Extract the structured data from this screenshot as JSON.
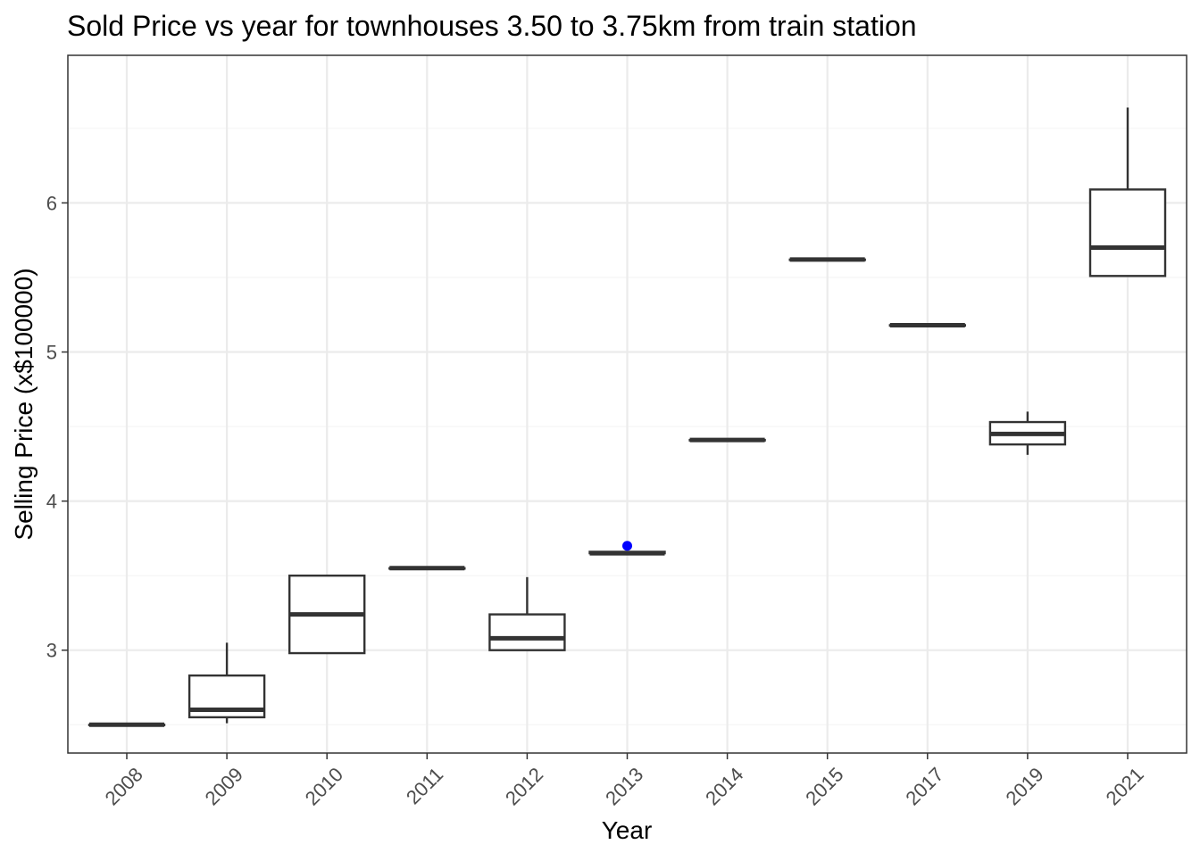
{
  "chart_data": {
    "type": "box",
    "title": "Sold Price vs year for townhouses 3.50 to 3.75km from train station",
    "xlabel": "Year",
    "ylabel": "Selling Price (x$100000)",
    "categories": [
      "2008",
      "2009",
      "2010",
      "2011",
      "2012",
      "2013",
      "2014",
      "2015",
      "2017",
      "2019",
      "2021"
    ],
    "y_ticks": [
      3,
      4,
      5,
      6
    ],
    "ylim": [
      2.31,
      6.99
    ],
    "grid": true,
    "boxes": [
      {
        "category": "2008",
        "min": 2.5,
        "q1": 2.5,
        "median": 2.5,
        "q3": 2.5,
        "max": 2.5
      },
      {
        "category": "2009",
        "min": 2.51,
        "q1": 2.55,
        "median": 2.6,
        "q3": 2.83,
        "max": 3.05
      },
      {
        "category": "2010",
        "min": 2.98,
        "q1": 2.98,
        "median": 3.24,
        "q3": 3.5,
        "max": 3.5
      },
      {
        "category": "2011",
        "min": 3.55,
        "q1": 3.55,
        "median": 3.55,
        "q3": 3.55,
        "max": 3.55
      },
      {
        "category": "2012",
        "min": 3.0,
        "q1": 3.0,
        "median": 3.08,
        "q3": 3.24,
        "max": 3.49
      },
      {
        "category": "2013",
        "min": 3.65,
        "q1": 3.65,
        "median": 3.65,
        "q3": 3.66,
        "max": 3.66
      },
      {
        "category": "2014",
        "min": 4.41,
        "q1": 4.41,
        "median": 4.41,
        "q3": 4.41,
        "max": 4.41
      },
      {
        "category": "2015",
        "min": 5.62,
        "q1": 5.62,
        "median": 5.62,
        "q3": 5.62,
        "max": 5.62
      },
      {
        "category": "2017",
        "min": 5.18,
        "q1": 5.18,
        "median": 5.18,
        "q3": 5.18,
        "max": 5.18
      },
      {
        "category": "2019",
        "min": 4.31,
        "q1": 4.38,
        "median": 4.45,
        "q3": 4.53,
        "max": 4.6
      },
      {
        "category": "2021",
        "min": 5.51,
        "q1": 5.51,
        "median": 5.7,
        "q3": 6.09,
        "max": 6.64
      }
    ],
    "highlight_points": [
      {
        "category": "2013",
        "y": 3.7,
        "color": "#0000ff"
      }
    ],
    "colors": {
      "box_stroke": "#333333",
      "grid_major": "#ebebeb",
      "grid_minor": "#f4f4f4",
      "panel_border": "#333333",
      "tick_text": "#4d4d4d"
    }
  }
}
